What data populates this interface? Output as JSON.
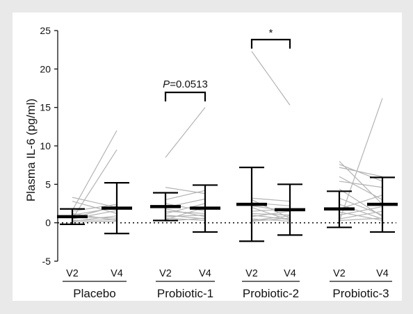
{
  "chart_data": {
    "type": "scatter",
    "ylabel": "Plasma IL-6 (pg/ml)",
    "ylim": [
      -5,
      25
    ],
    "yticks": [
      -5,
      0,
      5,
      10,
      15,
      20,
      25
    ],
    "zero_line": "dotted",
    "grid": false,
    "visits": [
      "V2",
      "V4"
    ],
    "groups": [
      {
        "name": "Placebo",
        "V2": {
          "mean": 0.8,
          "upper": 1.8,
          "lower": -0.2
        },
        "V4": {
          "mean": 1.9,
          "upper": 5.2,
          "lower": -1.4
        },
        "pairs": [
          [
            1.6,
            12.0
          ],
          [
            0.5,
            9.5
          ],
          [
            3.3,
            2.0
          ],
          [
            2.8,
            1.2
          ],
          [
            1.5,
            2.4
          ],
          [
            1.0,
            2.0
          ],
          [
            0.8,
            0.6
          ],
          [
            0.5,
            1.6
          ],
          [
            0.3,
            0.4
          ],
          [
            0.1,
            0.2
          ],
          [
            1.2,
            0.3
          ],
          [
            0.6,
            2.2
          ],
          [
            0.2,
            0.9
          ]
        ]
      },
      {
        "name": "Probiotic-1",
        "V2": {
          "mean": 2.1,
          "upper": 3.9,
          "lower": 0.3
        },
        "V4": {
          "mean": 1.9,
          "upper": 4.9,
          "lower": -1.2
        },
        "pairs": [
          [
            8.5,
            15.0
          ],
          [
            4.6,
            3.8
          ],
          [
            3.0,
            4.2
          ],
          [
            2.5,
            1.5
          ],
          [
            2.0,
            3.1
          ],
          [
            1.8,
            0.8
          ],
          [
            1.5,
            1.2
          ],
          [
            1.2,
            2.5
          ],
          [
            1.0,
            0.5
          ],
          [
            0.8,
            1.0
          ],
          [
            0.6,
            0.3
          ],
          [
            0.4,
            2.0
          ],
          [
            0.2,
            0.6
          ]
        ]
      },
      {
        "name": "Probiotic-2",
        "V2": {
          "mean": 2.4,
          "upper": 7.2,
          "lower": -2.4
        },
        "V4": {
          "mean": 1.7,
          "upper": 5.0,
          "lower": -1.6
        },
        "pairs": [
          [
            22.3,
            15.3
          ],
          [
            3.2,
            2.8
          ],
          [
            3.0,
            0.6
          ],
          [
            2.6,
            2.2
          ],
          [
            2.2,
            1.5
          ],
          [
            2.0,
            0.3
          ],
          [
            1.5,
            1.8
          ],
          [
            1.2,
            1.0
          ],
          [
            1.0,
            0.4
          ],
          [
            0.8,
            1.5
          ],
          [
            0.5,
            0.2
          ],
          [
            0.3,
            0.9
          ],
          [
            0.2,
            0.6
          ]
        ]
      },
      {
        "name": "Probiotic-3",
        "V2": {
          "mean": 1.8,
          "upper": 4.1,
          "lower": -0.6
        },
        "V4": {
          "mean": 2.4,
          "upper": 5.9,
          "lower": -1.2
        },
        "pairs": [
          [
            0.2,
            16.2
          ],
          [
            8.0,
            2.4
          ],
          [
            7.6,
            5.4
          ],
          [
            7.2,
            6.0
          ],
          [
            6.0,
            3.0
          ],
          [
            5.4,
            4.6
          ],
          [
            4.4,
            0.8
          ],
          [
            3.2,
            1.0
          ],
          [
            2.4,
            0.5
          ],
          [
            1.8,
            3.6
          ],
          [
            1.4,
            0.3
          ],
          [
            1.0,
            2.1
          ],
          [
            0.5,
            1.5
          ],
          [
            0.3,
            0.6
          ]
        ]
      }
    ],
    "annotations": [
      {
        "text_italic": "P",
        "text_rest": "=0.0513",
        "group": "Probiotic-1"
      },
      {
        "text": "*",
        "group": "Probiotic-2"
      }
    ]
  }
}
